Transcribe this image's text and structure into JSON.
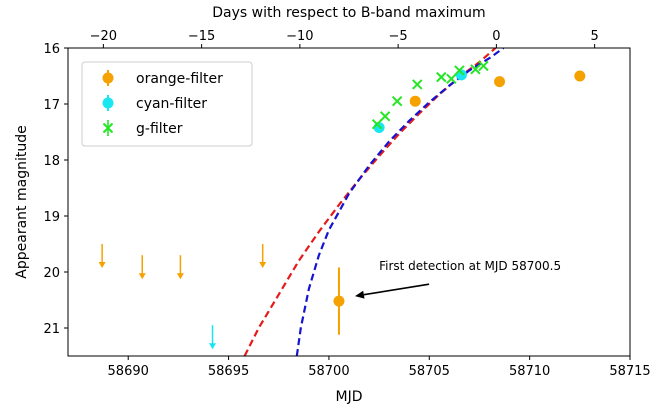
{
  "chart_data": {
    "type": "scatter",
    "xlabel": "MJD",
    "ylabel": "Appearant magnitude",
    "top_xlabel": "Days with respect to B-band maximum",
    "xlim": [
      58687,
      58715
    ],
    "ylim": [
      21.5,
      16.0
    ],
    "y_inverted": true,
    "top_xlim": [
      -21.8,
      6.8
    ],
    "x_ticks": [
      58690,
      58695,
      58700,
      58705,
      58710,
      58715
    ],
    "top_x_ticks": [
      -20,
      -15,
      -10,
      -5,
      0,
      5
    ],
    "y_ticks": [
      16,
      17,
      18,
      19,
      20,
      21
    ],
    "legend_position": "top-left",
    "colors": {
      "orange": "#f5a100",
      "cyan": "#19e6f0",
      "green": "#24e624",
      "red": "#e61a1a",
      "blue": "#1414d2"
    },
    "series": [
      {
        "name": "orange-filter",
        "marker": "circle",
        "color": "#f5a100",
        "points": [
          {
            "x": 58700.5,
            "y": 20.52,
            "yerr": 0.6
          },
          {
            "x": 58704.3,
            "y": 16.95,
            "yerr": 0.03
          },
          {
            "x": 58708.5,
            "y": 16.6,
            "yerr": 0.03
          },
          {
            "x": 58712.5,
            "y": 16.5,
            "yerr": 0.03
          }
        ],
        "upper_limits": [
          {
            "x": 58688.7,
            "y": 19.5
          },
          {
            "x": 58690.7,
            "y": 19.7
          },
          {
            "x": 58692.6,
            "y": 19.7
          },
          {
            "x": 58696.7,
            "y": 19.5
          }
        ]
      },
      {
        "name": "cyan-filter",
        "marker": "circle",
        "color": "#19e6f0",
        "points": [
          {
            "x": 58702.5,
            "y": 17.42,
            "yerr": 0.03
          },
          {
            "x": 58706.6,
            "y": 16.48,
            "yerr": 0.03
          }
        ],
        "upper_limits": [
          {
            "x": 58694.2,
            "y": 20.95
          }
        ]
      },
      {
        "name": "g-filter",
        "marker": "x",
        "color": "#24e624",
        "points": [
          {
            "x": 58702.4,
            "y": 17.36
          },
          {
            "x": 58702.8,
            "y": 17.22
          },
          {
            "x": 58703.4,
            "y": 16.95
          },
          {
            "x": 58704.4,
            "y": 16.65
          },
          {
            "x": 58705.6,
            "y": 16.52
          },
          {
            "x": 58706.1,
            "y": 16.55
          },
          {
            "x": 58706.5,
            "y": 16.4
          },
          {
            "x": 58707.3,
            "y": 16.38
          },
          {
            "x": 58707.7,
            "y": 16.32
          }
        ]
      }
    ],
    "fit_curves": [
      {
        "color": "#e61a1a",
        "points": [
          {
            "x": 58695.8,
            "y": 21.5
          },
          {
            "x": 58696.5,
            "y": 21.0
          },
          {
            "x": 58697.5,
            "y": 20.4
          },
          {
            "x": 58698.5,
            "y": 19.8
          },
          {
            "x": 58699.5,
            "y": 19.28
          },
          {
            "x": 58700.5,
            "y": 18.8
          },
          {
            "x": 58701.5,
            "y": 18.35
          },
          {
            "x": 58702.5,
            "y": 17.93
          },
          {
            "x": 58703.5,
            "y": 17.53
          },
          {
            "x": 58704.5,
            "y": 17.17
          },
          {
            "x": 58705.5,
            "y": 16.83
          },
          {
            "x": 58706.5,
            "y": 16.52
          },
          {
            "x": 58707.5,
            "y": 16.25
          },
          {
            "x": 58708.3,
            "y": 16.0
          }
        ]
      },
      {
        "color": "#1414d2",
        "points": [
          {
            "x": 58698.4,
            "y": 21.5
          },
          {
            "x": 58698.6,
            "y": 21.0
          },
          {
            "x": 58699.0,
            "y": 20.3
          },
          {
            "x": 58699.5,
            "y": 19.7
          },
          {
            "x": 58700.0,
            "y": 19.25
          },
          {
            "x": 58701.0,
            "y": 18.6
          },
          {
            "x": 58702.0,
            "y": 18.1
          },
          {
            "x": 58703.0,
            "y": 17.67
          },
          {
            "x": 58704.0,
            "y": 17.3
          },
          {
            "x": 58705.0,
            "y": 16.97
          },
          {
            "x": 58706.0,
            "y": 16.67
          },
          {
            "x": 58707.0,
            "y": 16.4
          },
          {
            "x": 58708.0,
            "y": 16.18
          },
          {
            "x": 58708.7,
            "y": 16.0
          }
        ]
      }
    ],
    "annotations": [
      {
        "text": "First detection at MJD 58700.5",
        "point_x": 58700.5,
        "point_y": 20.52,
        "text_x": 58702.2,
        "text_y": 19.95
      }
    ]
  }
}
